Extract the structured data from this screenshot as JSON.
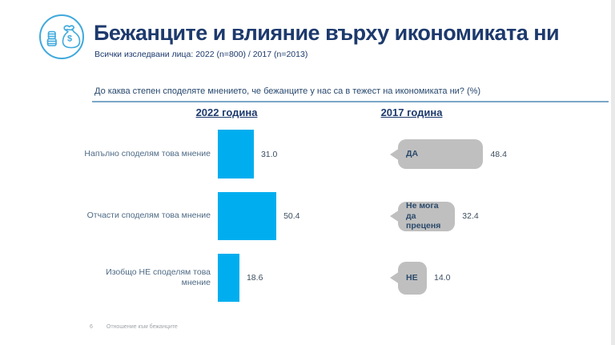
{
  "header": {
    "title": "Бежанците и влияние върху икономиката ни",
    "subtitle": "Всички изследвани лица: 2022 (n=800) / 2017 (n=2013)",
    "icon": "money-bag-icon"
  },
  "question": "До каква степен споделяте мнението, че бежанците у нас са в тежест на икономиката ни? (%)",
  "footer": {
    "page_number": "6",
    "text": "Отношение към бежанците"
  },
  "colors": {
    "title_navy": "#1d3a6d",
    "bar_cyan": "#00AEEF",
    "bubble_gray": "#bfbfbf",
    "icon_blue": "#3FA9DC"
  },
  "chart_data": [
    {
      "type": "bar",
      "orientation": "horizontal",
      "title": "2022 година",
      "categories": [
        "Напълно споделям това мнение",
        "Отчасти споделям това мнение",
        "Изобщо НЕ споделям това мнение"
      ],
      "values": [
        31.0,
        50.4,
        18.6
      ],
      "value_labels": [
        "31.0",
        "50.4",
        "18.6"
      ],
      "unit": "%",
      "bar_color": "#00AEEF",
      "xlim": [
        0,
        100
      ],
      "grid": false,
      "legend": false
    },
    {
      "type": "bar",
      "orientation": "horizontal",
      "style": "speech-bubble",
      "title": "2017 година",
      "categories": [
        "ДА",
        "Не мога да преценя",
        "НЕ"
      ],
      "values": [
        48.4,
        32.4,
        14.0
      ],
      "value_labels": [
        "48.4",
        "32.4",
        "14.0"
      ],
      "unit": "%",
      "bar_color": "#bfbfbf",
      "xlim": [
        0,
        100
      ],
      "grid": false,
      "legend": false
    }
  ]
}
